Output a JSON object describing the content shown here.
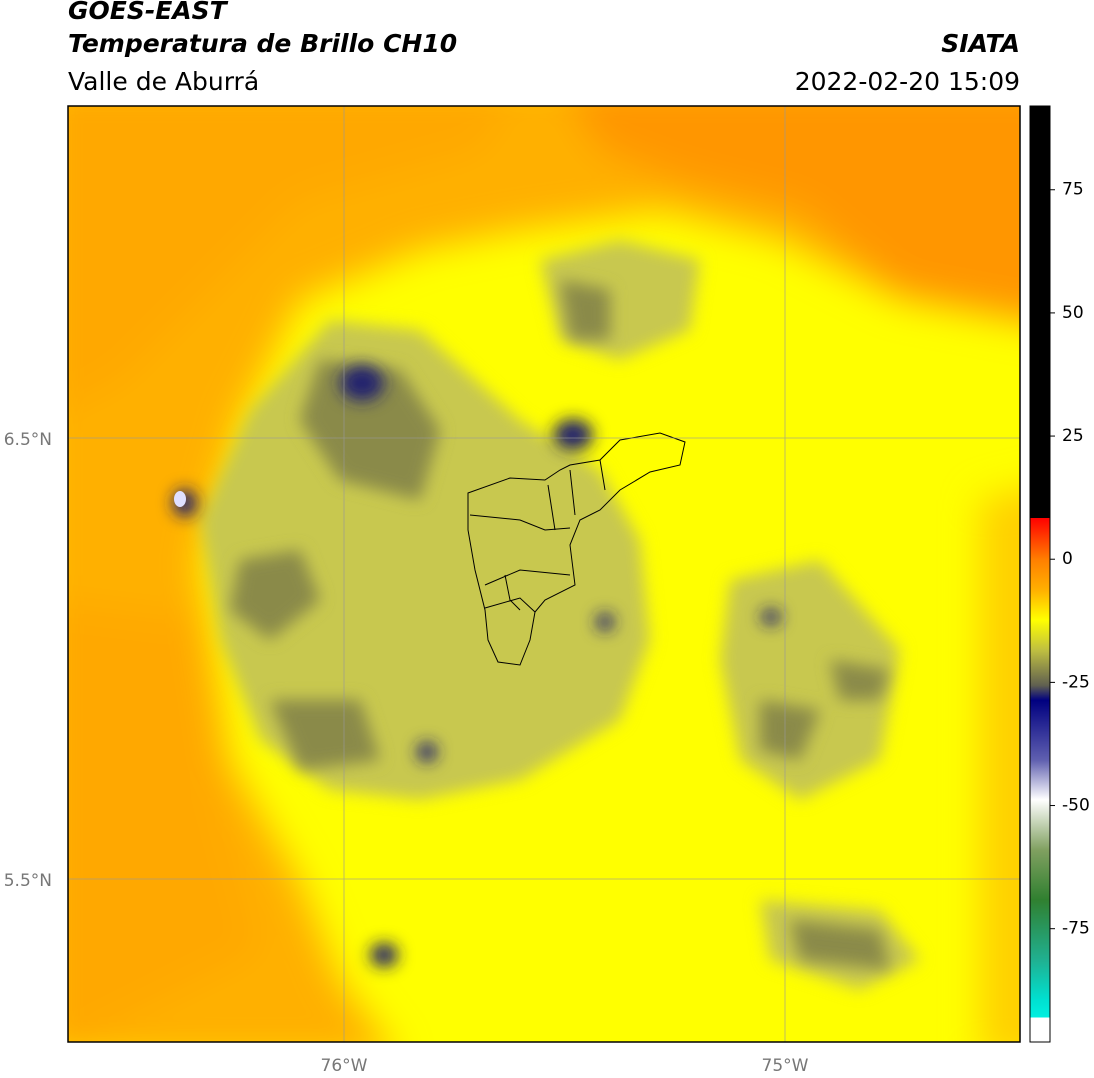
{
  "header": {
    "source": "GOES-EAST",
    "title": "Temperatura de Brillo CH10",
    "region": "Valle de Aburrá",
    "agency": "SIATA",
    "timestamp": "2022-02-20 15:09"
  },
  "map": {
    "lat_labels": [
      "6.5°N",
      "5.5°N"
    ],
    "lon_labels": [
      "76°W",
      "75°W"
    ]
  },
  "colorbar": {
    "range": [
      -98,
      92
    ],
    "ticks": [
      75,
      50,
      25,
      0,
      -25,
      -50,
      -75
    ]
  }
}
